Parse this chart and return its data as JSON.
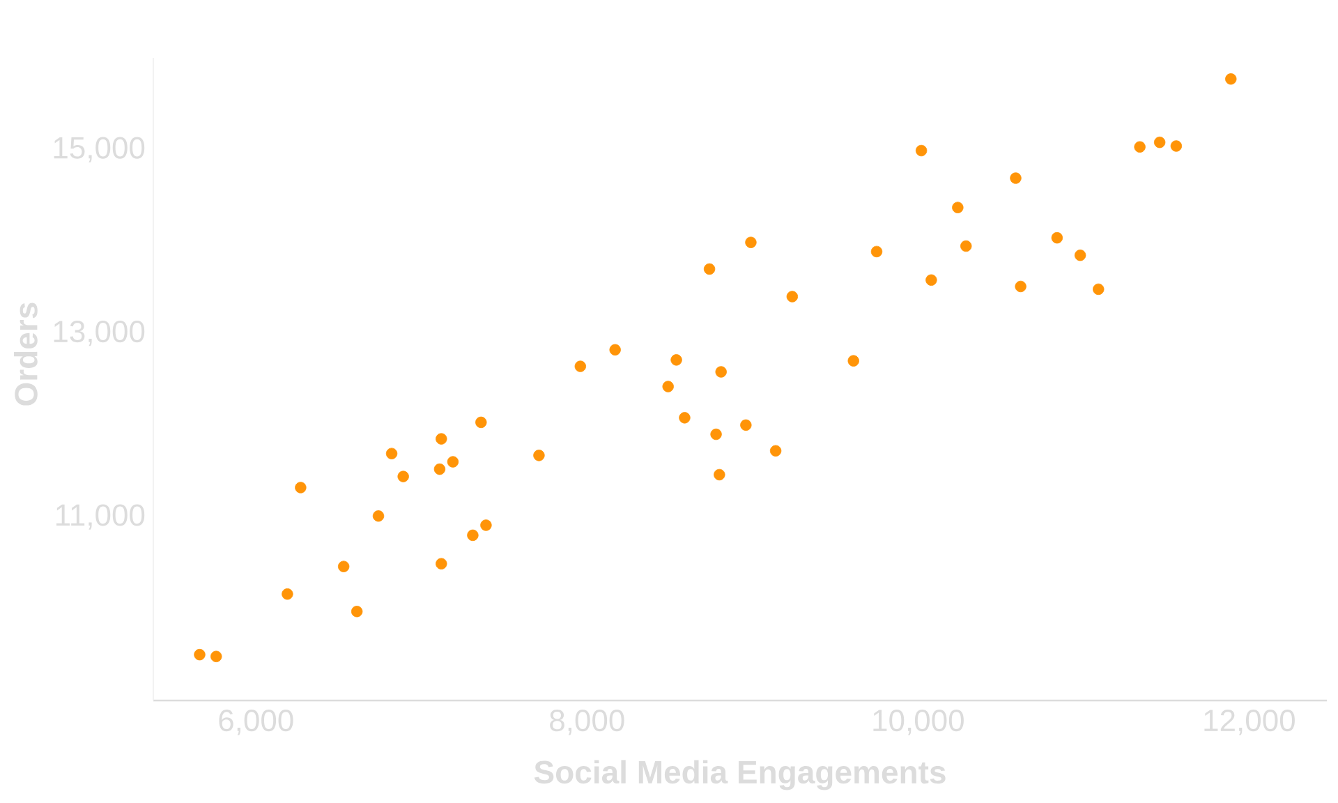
{
  "chart_data": {
    "type": "scatter",
    "xlabel": "Social Media Engagements",
    "ylabel": "Orders",
    "x": [
      5660,
      5760,
      6190,
      6270,
      6530,
      6610,
      6740,
      6820,
      6890,
      7110,
      7120,
      7120,
      7190,
      7310,
      7360,
      7390,
      7710,
      7960,
      8170,
      8490,
      8540,
      8590,
      8740,
      8780,
      8800,
      8810,
      8960,
      8990,
      9140,
      9240,
      9610,
      9750,
      10020,
      10080,
      10240,
      10290,
      10590,
      10620,
      10840,
      10980,
      11090,
      11340,
      11460,
      11560,
      11890
    ],
    "values": [
      9500,
      9480,
      10160,
      11320,
      10460,
      9970,
      11010,
      11690,
      11440,
      11520,
      11850,
      10490,
      11600,
      10800,
      12030,
      10910,
      11670,
      12640,
      12820,
      12420,
      12710,
      12080,
      13700,
      11900,
      11460,
      12580,
      12000,
      13990,
      11720,
      13400,
      12700,
      13890,
      14990,
      13580,
      14370,
      13950,
      14690,
      13510,
      14040,
      13850,
      13480,
      15030,
      15080,
      15040,
      15770
    ],
    "color": "#ff9408",
    "marker": "circle",
    "xlim": [
      5380,
      12470
    ],
    "ylim": [
      9000,
      16000
    ],
    "xticks": [
      {
        "value": 6000,
        "label": "6,000"
      },
      {
        "value": 8000,
        "label": "8,000"
      },
      {
        "value": 10000,
        "label": "10,000"
      },
      {
        "value": 12000,
        "label": "12,000"
      }
    ],
    "yticks": [
      {
        "value": 11000,
        "label": "11,000"
      },
      {
        "value": 13000,
        "label": "13,000"
      },
      {
        "value": 15000,
        "label": "15,000"
      }
    ]
  }
}
